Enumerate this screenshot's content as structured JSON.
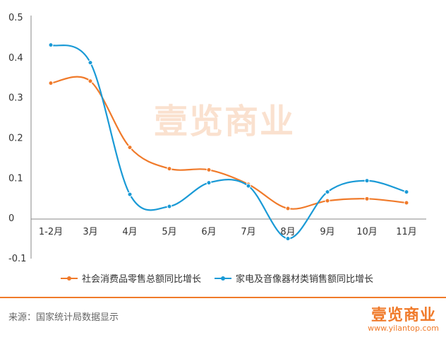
{
  "chart_data": {
    "type": "line",
    "categories": [
      "1-2月",
      "3月",
      "4月",
      "5月",
      "6月",
      "7月",
      "8月",
      "9月",
      "10月",
      "11月"
    ],
    "series": [
      {
        "name": "社会消费品零售总额同比增长",
        "color": "#f07a2a",
        "values": [
          0.337,
          0.342,
          0.177,
          0.124,
          0.121,
          0.085,
          0.025,
          0.044,
          0.049,
          0.039
        ]
      },
      {
        "name": "家电及音像器材类销售额同比增长",
        "color": "#1a9ad6",
        "values": [
          0.432,
          0.388,
          0.06,
          0.03,
          0.089,
          0.081,
          -0.05,
          0.066,
          0.094,
          0.066
        ]
      }
    ],
    "yticks": [
      0.5,
      0.4,
      0.3,
      0.2,
      0.1,
      0,
      -0.1
    ],
    "ylim": [
      -0.1,
      0.5
    ],
    "grid": false,
    "legend_position": "bottom",
    "line_style": "smooth"
  },
  "footer": {
    "source": "来源：国家统计局数据显示",
    "brand_name": "壹览商业",
    "brand_url": "www.yilantop.com"
  },
  "watermark": "壹览商业"
}
